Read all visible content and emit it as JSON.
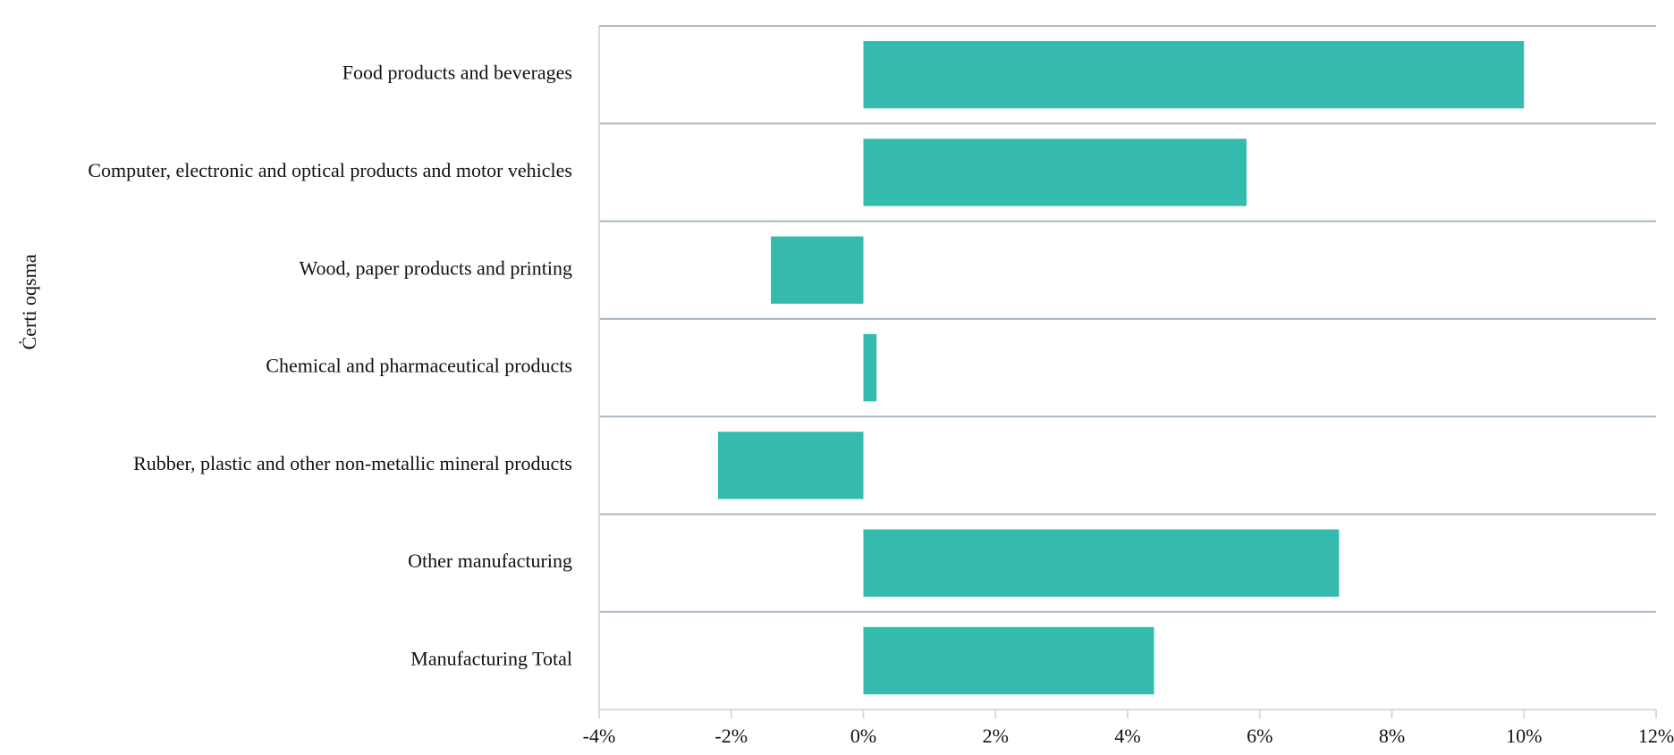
{
  "chart_data": {
    "type": "bar",
    "orientation": "horizontal",
    "ylabel": "Ċerti oqsma",
    "xlabel": "",
    "categories": [
      "Food products and beverages",
      "Computer, electronic and optical products and motor vehicles",
      "Wood, paper products and printing",
      "Chemical and pharmaceutical products",
      "Rubber, plastic and other non-metallic mineral products",
      "Other manufacturing",
      "Manufacturing Total"
    ],
    "values": [
      10.0,
      5.8,
      -1.4,
      0.2,
      -2.2,
      7.2,
      4.4
    ],
    "xlim": [
      -4,
      12
    ],
    "xticks": [
      -4,
      -2,
      0,
      2,
      4,
      6,
      8,
      10,
      12
    ],
    "xtick_labels": [
      "-4%",
      "-2%",
      "0%",
      "2%",
      "4%",
      "6%",
      "8%",
      "10%",
      "12%"
    ],
    "grid": "horizontal separators between categories",
    "legend": "none"
  },
  "colors": {
    "bar": "#34bbad",
    "separator": "#a9b6c4",
    "axis": "#d6dbe0",
    "text": "#111111"
  }
}
